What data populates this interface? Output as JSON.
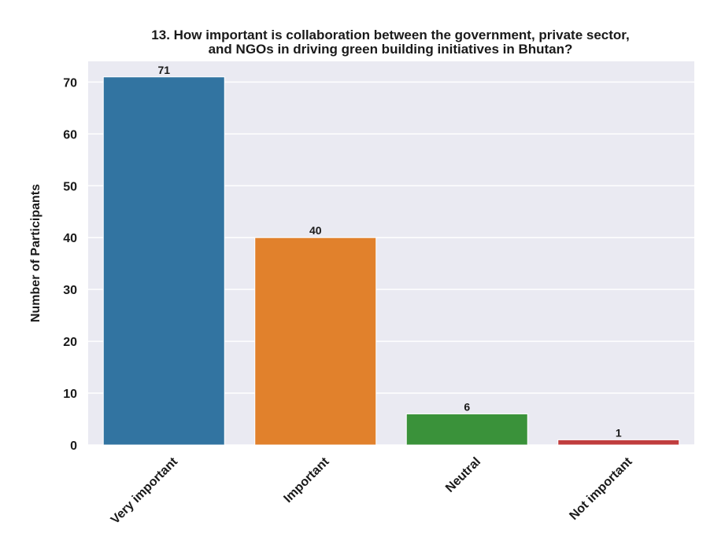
{
  "chart_data": {
    "type": "bar",
    "title_line1": "13. How important is collaboration between the government, private sector,",
    "title_line2": "and NGOs in driving green building initiatives in Bhutan?",
    "xlabel": "",
    "ylabel": "Number of Participants",
    "categories": [
      "Very important",
      "Important",
      "Neutral",
      "Not important"
    ],
    "values": [
      71,
      40,
      6,
      1
    ],
    "colors": [
      "#3274a1",
      "#e1812c",
      "#3a923a",
      "#c03d3e"
    ],
    "ylim": [
      0,
      74
    ],
    "yticks": [
      0,
      10,
      20,
      30,
      40,
      50,
      60,
      70
    ],
    "grid": true,
    "background": "#eaeaf2"
  }
}
